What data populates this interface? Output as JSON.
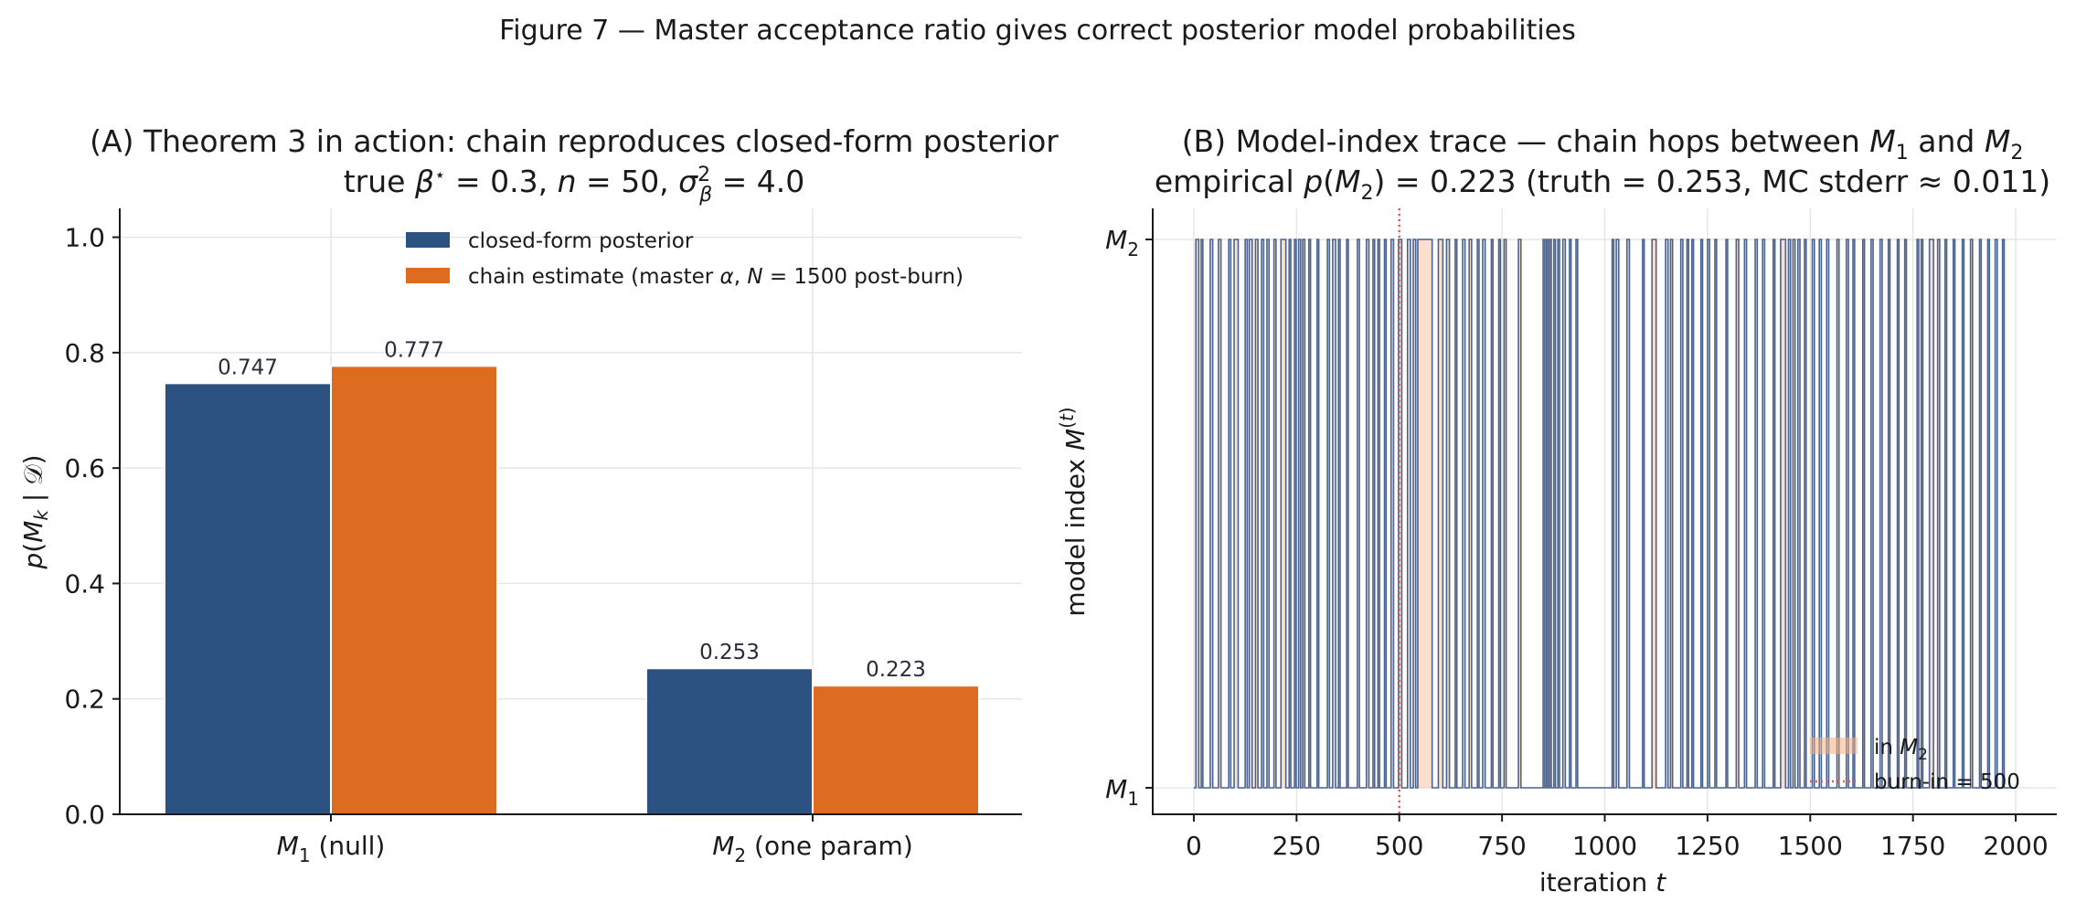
{
  "figure": {
    "title": "Figure 7 — Master acceptance ratio gives correct posterior model probabilities"
  },
  "colors": {
    "closed_form": "#2c5282",
    "chain": "#dd6b20",
    "trace_line": "#4a6491",
    "in_m2_fill": "#f4b184",
    "burnin": "#e05a5a"
  },
  "chart_data": [
    {
      "type": "bar",
      "panel": "A",
      "title_line1": "(A) Theorem 3 in action: chain reproduces closed-form posterior",
      "title_line2": "true β⋆ = 0.3, n = 50, σβ² = 4.0",
      "categories": [
        "M₁ (null)",
        "M₂ (one param)"
      ],
      "series": [
        {
          "name": "closed-form posterior",
          "values": [
            0.747,
            0.253
          ],
          "labels": [
            "0.747",
            "0.253"
          ]
        },
        {
          "name": "chain estimate (master α, N = 1500 post-burn)",
          "values": [
            0.777,
            0.223
          ],
          "labels": [
            "0.777",
            "0.223"
          ]
        }
      ],
      "ylabel": "p(Mₖ | 𝒟)",
      "xlabel": "",
      "ylim": [
        0,
        1.05
      ],
      "yticks": [
        0.0,
        0.2,
        0.4,
        0.6,
        0.8,
        1.0
      ],
      "ytick_labels": [
        "0.0",
        "0.2",
        "0.4",
        "0.6",
        "0.8",
        "1.0"
      ],
      "grid": true,
      "legend_position": "top-center"
    },
    {
      "type": "line",
      "panel": "B",
      "title_line1": "(B) Model-index trace — chain hops between M₁ and M₂",
      "title_line2": "empirical p(M₂) = 0.223  (truth = 0.253, MC stderr ≈ 0.011)",
      "xlabel": "iteration t",
      "ylabel": "model index M⁽ᵗ⁾",
      "xlim": [
        -100,
        2100
      ],
      "xticks": [
        0,
        250,
        500,
        750,
        1000,
        1250,
        1500,
        1750,
        2000
      ],
      "xtick_labels": [
        "0",
        "250",
        "500",
        "750",
        "1000",
        "1250",
        "1500",
        "1750",
        "2000"
      ],
      "ytick_labels": [
        "M₁",
        "M₂"
      ],
      "n_iterations": 2000,
      "burn_in": 500,
      "m2_intervals": [
        [
          5,
          12
        ],
        [
          18,
          22
        ],
        [
          40,
          46
        ],
        [
          60,
          66
        ],
        [
          85,
          90
        ],
        [
          98,
          108
        ],
        [
          125,
          130
        ],
        [
          135,
          142
        ],
        [
          150,
          156
        ],
        [
          165,
          170
        ],
        [
          178,
          183
        ],
        [
          195,
          200
        ],
        [
          212,
          224
        ],
        [
          232,
          236
        ],
        [
          245,
          249
        ],
        [
          255,
          260
        ],
        [
          265,
          270
        ],
        [
          280,
          284
        ],
        [
          300,
          304
        ],
        [
          325,
          330
        ],
        [
          338,
          345
        ],
        [
          352,
          356
        ],
        [
          372,
          376
        ],
        [
          398,
          403
        ],
        [
          420,
          426
        ],
        [
          436,
          440
        ],
        [
          448,
          452
        ],
        [
          464,
          468
        ],
        [
          480,
          486
        ],
        [
          498,
          506
        ],
        [
          520,
          527
        ],
        [
          534,
          540
        ],
        [
          545,
          580
        ],
        [
          595,
          606
        ],
        [
          615,
          622
        ],
        [
          636,
          640
        ],
        [
          654,
          660
        ],
        [
          670,
          676
        ],
        [
          690,
          694
        ],
        [
          703,
          709
        ],
        [
          724,
          728
        ],
        [
          742,
          746
        ],
        [
          755,
          760
        ],
        [
          790,
          796
        ],
        [
          850,
          854
        ],
        [
          858,
          862
        ],
        [
          866,
          870
        ],
        [
          876,
          880
        ],
        [
          886,
          890
        ],
        [
          898,
          904
        ],
        [
          914,
          918
        ],
        [
          930,
          934
        ],
        [
          1018,
          1022
        ],
        [
          1028,
          1034
        ],
        [
          1054,
          1060
        ],
        [
          1092,
          1096
        ],
        [
          1115,
          1125
        ],
        [
          1148,
          1154
        ],
        [
          1160,
          1165
        ],
        [
          1185,
          1190
        ],
        [
          1200,
          1204
        ],
        [
          1212,
          1216
        ],
        [
          1234,
          1238
        ],
        [
          1250,
          1255
        ],
        [
          1268,
          1272
        ],
        [
          1295,
          1299
        ],
        [
          1320,
          1326
        ],
        [
          1340,
          1345
        ],
        [
          1366,
          1371
        ],
        [
          1384,
          1389
        ],
        [
          1410,
          1414
        ],
        [
          1428,
          1440
        ],
        [
          1447,
          1452
        ],
        [
          1458,
          1463
        ],
        [
          1470,
          1475
        ],
        [
          1486,
          1490
        ],
        [
          1505,
          1510
        ],
        [
          1522,
          1527
        ],
        [
          1540,
          1545
        ],
        [
          1565,
          1570
        ],
        [
          1588,
          1593
        ],
        [
          1604,
          1608
        ],
        [
          1628,
          1632
        ],
        [
          1648,
          1653
        ],
        [
          1670,
          1675
        ],
        [
          1690,
          1694
        ],
        [
          1712,
          1716
        ],
        [
          1730,
          1734
        ],
        [
          1760,
          1764
        ],
        [
          1770,
          1774
        ],
        [
          1790,
          1800
        ],
        [
          1810,
          1815
        ],
        [
          1828,
          1832
        ],
        [
          1848,
          1852
        ],
        [
          1870,
          1874
        ],
        [
          1890,
          1895
        ],
        [
          1912,
          1916
        ],
        [
          1932,
          1936
        ],
        [
          1950,
          1955
        ],
        [
          1968,
          1972
        ]
      ],
      "legend": {
        "in_m2_label": "in M₂",
        "burnin_label": "burn-in = 500",
        "position": "bottom-right"
      },
      "grid": true
    }
  ]
}
